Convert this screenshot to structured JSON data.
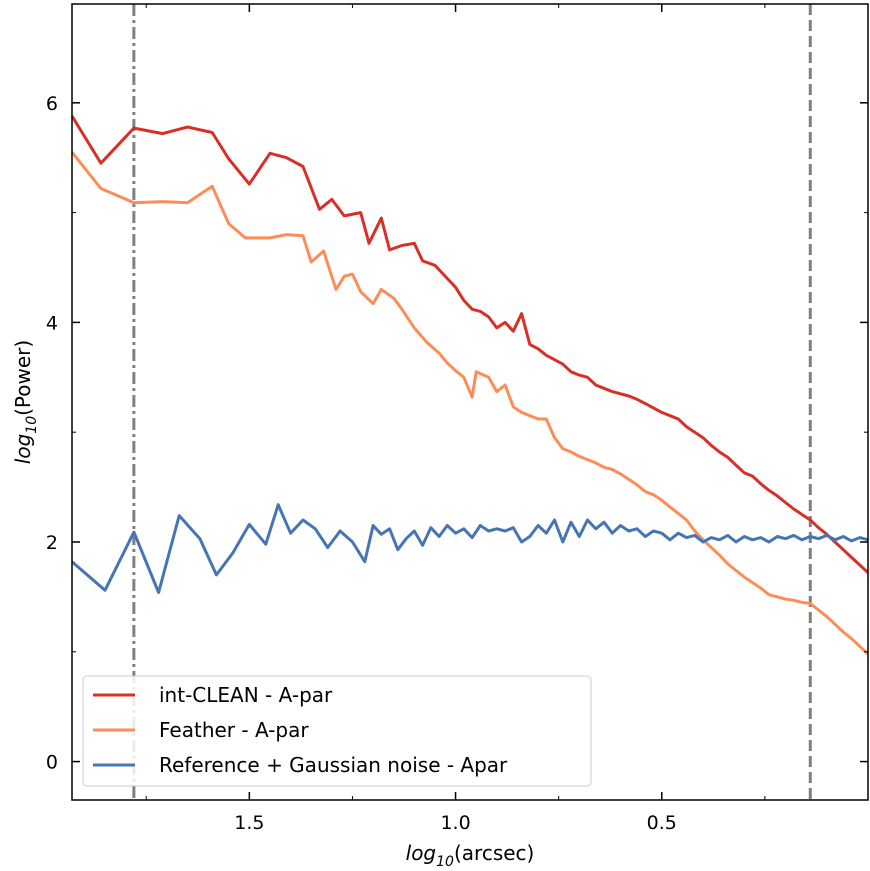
{
  "chart_data": {
    "type": "line",
    "xlabel": "arcsec",
    "ylabel": "Power",
    "log_prefix": "log",
    "log_subscript": "10",
    "x_reversed": true,
    "xlim": [
      1.93,
      0.0
    ],
    "ylim": [
      -0.35,
      6.9
    ],
    "x_ticks": [
      1.5,
      1.0,
      0.5
    ],
    "x_tick_labels": [
      "1.5",
      "1.0",
      "0.5"
    ],
    "x_minor_ticks": [
      1.75,
      1.25,
      0.75,
      0.25
    ],
    "y_ticks": [
      0,
      2,
      4,
      6
    ],
    "y_tick_labels": [
      "0",
      "2",
      "4",
      "6"
    ],
    "y_minor_ticks": [
      1,
      3,
      5
    ],
    "vlines": [
      {
        "x": 1.78,
        "style": "dashdot",
        "color": "#808080"
      },
      {
        "x": 0.14,
        "style": "dashed",
        "color": "#808080"
      }
    ],
    "legend_position": "lower-left",
    "series": [
      {
        "name": "int-CLEAN - A-par",
        "color": "#d73027",
        "points": [
          [
            1.93,
            5.88
          ],
          [
            1.86,
            5.45
          ],
          [
            1.78,
            5.77
          ],
          [
            1.71,
            5.72
          ],
          [
            1.65,
            5.78
          ],
          [
            1.59,
            5.73
          ],
          [
            1.55,
            5.49
          ],
          [
            1.5,
            5.26
          ],
          [
            1.45,
            5.54
          ],
          [
            1.41,
            5.5
          ],
          [
            1.37,
            5.42
          ],
          [
            1.33,
            5.03
          ],
          [
            1.3,
            5.12
          ],
          [
            1.27,
            4.97
          ],
          [
            1.23,
            5.0
          ],
          [
            1.21,
            4.72
          ],
          [
            1.18,
            4.95
          ],
          [
            1.16,
            4.66
          ],
          [
            1.13,
            4.7
          ],
          [
            1.1,
            4.72
          ],
          [
            1.08,
            4.56
          ],
          [
            1.05,
            4.52
          ],
          [
            1.02,
            4.4
          ],
          [
            1.0,
            4.32
          ],
          [
            0.98,
            4.2
          ],
          [
            0.96,
            4.12
          ],
          [
            0.94,
            4.1
          ],
          [
            0.92,
            4.05
          ],
          [
            0.9,
            3.95
          ],
          [
            0.88,
            4.0
          ],
          [
            0.86,
            3.92
          ],
          [
            0.84,
            4.08
          ],
          [
            0.82,
            3.8
          ],
          [
            0.8,
            3.76
          ],
          [
            0.78,
            3.7
          ],
          [
            0.76,
            3.66
          ],
          [
            0.74,
            3.62
          ],
          [
            0.72,
            3.55
          ],
          [
            0.7,
            3.52
          ],
          [
            0.68,
            3.5
          ],
          [
            0.66,
            3.43
          ],
          [
            0.64,
            3.4
          ],
          [
            0.62,
            3.37
          ],
          [
            0.6,
            3.35
          ],
          [
            0.58,
            3.33
          ],
          [
            0.56,
            3.3
          ],
          [
            0.54,
            3.26
          ],
          [
            0.52,
            3.22
          ],
          [
            0.5,
            3.18
          ],
          [
            0.48,
            3.15
          ],
          [
            0.46,
            3.12
          ],
          [
            0.44,
            3.05
          ],
          [
            0.42,
            3.0
          ],
          [
            0.4,
            2.95
          ],
          [
            0.38,
            2.88
          ],
          [
            0.36,
            2.82
          ],
          [
            0.34,
            2.77
          ],
          [
            0.32,
            2.7
          ],
          [
            0.3,
            2.63
          ],
          [
            0.28,
            2.6
          ],
          [
            0.26,
            2.53
          ],
          [
            0.24,
            2.47
          ],
          [
            0.22,
            2.42
          ],
          [
            0.2,
            2.36
          ],
          [
            0.18,
            2.3
          ],
          [
            0.16,
            2.25
          ],
          [
            0.14,
            2.2
          ],
          [
            0.12,
            2.13
          ],
          [
            0.1,
            2.07
          ],
          [
            0.08,
            2.0
          ],
          [
            0.06,
            1.93
          ],
          [
            0.04,
            1.86
          ],
          [
            0.02,
            1.79
          ],
          [
            0.0,
            1.72
          ]
        ]
      },
      {
        "name": "Feather - A-par",
        "color": "#fc8d59",
        "points": [
          [
            1.93,
            5.55
          ],
          [
            1.86,
            5.22
          ],
          [
            1.78,
            5.09
          ],
          [
            1.71,
            5.1
          ],
          [
            1.65,
            5.09
          ],
          [
            1.59,
            5.24
          ],
          [
            1.55,
            4.9
          ],
          [
            1.51,
            4.77
          ],
          [
            1.45,
            4.77
          ],
          [
            1.41,
            4.8
          ],
          [
            1.37,
            4.79
          ],
          [
            1.35,
            4.55
          ],
          [
            1.32,
            4.65
          ],
          [
            1.29,
            4.3
          ],
          [
            1.27,
            4.42
          ],
          [
            1.25,
            4.44
          ],
          [
            1.23,
            4.28
          ],
          [
            1.2,
            4.17
          ],
          [
            1.18,
            4.3
          ],
          [
            1.15,
            4.22
          ],
          [
            1.13,
            4.12
          ],
          [
            1.1,
            3.95
          ],
          [
            1.07,
            3.82
          ],
          [
            1.04,
            3.72
          ],
          [
            1.02,
            3.63
          ],
          [
            1.0,
            3.56
          ],
          [
            0.98,
            3.5
          ],
          [
            0.96,
            3.32
          ],
          [
            0.95,
            3.55
          ],
          [
            0.92,
            3.5
          ],
          [
            0.9,
            3.37
          ],
          [
            0.88,
            3.43
          ],
          [
            0.86,
            3.23
          ],
          [
            0.84,
            3.18
          ],
          [
            0.82,
            3.15
          ],
          [
            0.8,
            3.12
          ],
          [
            0.78,
            3.12
          ],
          [
            0.76,
            2.95
          ],
          [
            0.74,
            2.85
          ],
          [
            0.72,
            2.82
          ],
          [
            0.7,
            2.78
          ],
          [
            0.68,
            2.75
          ],
          [
            0.66,
            2.72
          ],
          [
            0.64,
            2.68
          ],
          [
            0.62,
            2.66
          ],
          [
            0.6,
            2.62
          ],
          [
            0.58,
            2.57
          ],
          [
            0.56,
            2.52
          ],
          [
            0.54,
            2.46
          ],
          [
            0.52,
            2.43
          ],
          [
            0.5,
            2.38
          ],
          [
            0.48,
            2.32
          ],
          [
            0.46,
            2.26
          ],
          [
            0.44,
            2.2
          ],
          [
            0.42,
            2.1
          ],
          [
            0.4,
            2.02
          ],
          [
            0.38,
            1.95
          ],
          [
            0.36,
            1.88
          ],
          [
            0.34,
            1.8
          ],
          [
            0.32,
            1.74
          ],
          [
            0.3,
            1.68
          ],
          [
            0.28,
            1.63
          ],
          [
            0.26,
            1.58
          ],
          [
            0.24,
            1.52
          ],
          [
            0.22,
            1.5
          ],
          [
            0.2,
            1.48
          ],
          [
            0.18,
            1.47
          ],
          [
            0.16,
            1.45
          ],
          [
            0.14,
            1.44
          ],
          [
            0.12,
            1.38
          ],
          [
            0.1,
            1.32
          ],
          [
            0.08,
            1.25
          ],
          [
            0.06,
            1.18
          ],
          [
            0.04,
            1.12
          ],
          [
            0.02,
            1.05
          ],
          [
            0.0,
            0.98
          ]
        ]
      },
      {
        "name": "Reference + Gaussian noise - Apar",
        "color": "#4575b4",
        "points": [
          [
            1.93,
            1.82
          ],
          [
            1.85,
            1.56
          ],
          [
            1.78,
            2.09
          ],
          [
            1.72,
            1.54
          ],
          [
            1.67,
            2.24
          ],
          [
            1.62,
            2.03
          ],
          [
            1.58,
            1.7
          ],
          [
            1.54,
            1.9
          ],
          [
            1.5,
            2.16
          ],
          [
            1.46,
            1.98
          ],
          [
            1.43,
            2.34
          ],
          [
            1.4,
            2.08
          ],
          [
            1.37,
            2.2
          ],
          [
            1.34,
            2.12
          ],
          [
            1.31,
            1.95
          ],
          [
            1.28,
            2.1
          ],
          [
            1.25,
            2.0
          ],
          [
            1.22,
            1.82
          ],
          [
            1.2,
            2.15
          ],
          [
            1.18,
            2.07
          ],
          [
            1.16,
            2.12
          ],
          [
            1.14,
            1.93
          ],
          [
            1.12,
            2.03
          ],
          [
            1.1,
            2.1
          ],
          [
            1.08,
            1.97
          ],
          [
            1.06,
            2.13
          ],
          [
            1.04,
            2.05
          ],
          [
            1.02,
            2.15
          ],
          [
            1.0,
            2.08
          ],
          [
            0.98,
            2.12
          ],
          [
            0.96,
            2.04
          ],
          [
            0.94,
            2.15
          ],
          [
            0.92,
            2.1
          ],
          [
            0.9,
            2.12
          ],
          [
            0.88,
            2.1
          ],
          [
            0.86,
            2.13
          ],
          [
            0.84,
            2.0
          ],
          [
            0.82,
            2.05
          ],
          [
            0.8,
            2.15
          ],
          [
            0.78,
            2.08
          ],
          [
            0.76,
            2.2
          ],
          [
            0.74,
            2.0
          ],
          [
            0.72,
            2.18
          ],
          [
            0.7,
            2.05
          ],
          [
            0.68,
            2.2
          ],
          [
            0.66,
            2.12
          ],
          [
            0.64,
            2.18
          ],
          [
            0.62,
            2.08
          ],
          [
            0.6,
            2.15
          ],
          [
            0.58,
            2.1
          ],
          [
            0.56,
            2.12
          ],
          [
            0.54,
            2.05
          ],
          [
            0.52,
            2.1
          ],
          [
            0.5,
            2.08
          ],
          [
            0.48,
            2.02
          ],
          [
            0.46,
            2.08
          ],
          [
            0.44,
            2.04
          ],
          [
            0.42,
            2.06
          ],
          [
            0.4,
            2.0
          ],
          [
            0.38,
            2.04
          ],
          [
            0.36,
            2.02
          ],
          [
            0.34,
            2.06
          ],
          [
            0.32,
            2.0
          ],
          [
            0.3,
            2.05
          ],
          [
            0.28,
            2.02
          ],
          [
            0.26,
            2.04
          ],
          [
            0.24,
            2.0
          ],
          [
            0.22,
            2.05
          ],
          [
            0.2,
            2.03
          ],
          [
            0.18,
            2.06
          ],
          [
            0.16,
            2.02
          ],
          [
            0.14,
            2.05
          ],
          [
            0.12,
            2.03
          ],
          [
            0.1,
            2.06
          ],
          [
            0.08,
            2.02
          ],
          [
            0.06,
            2.05
          ],
          [
            0.04,
            2.01
          ],
          [
            0.02,
            2.04
          ],
          [
            0.0,
            2.02
          ]
        ]
      }
    ]
  }
}
